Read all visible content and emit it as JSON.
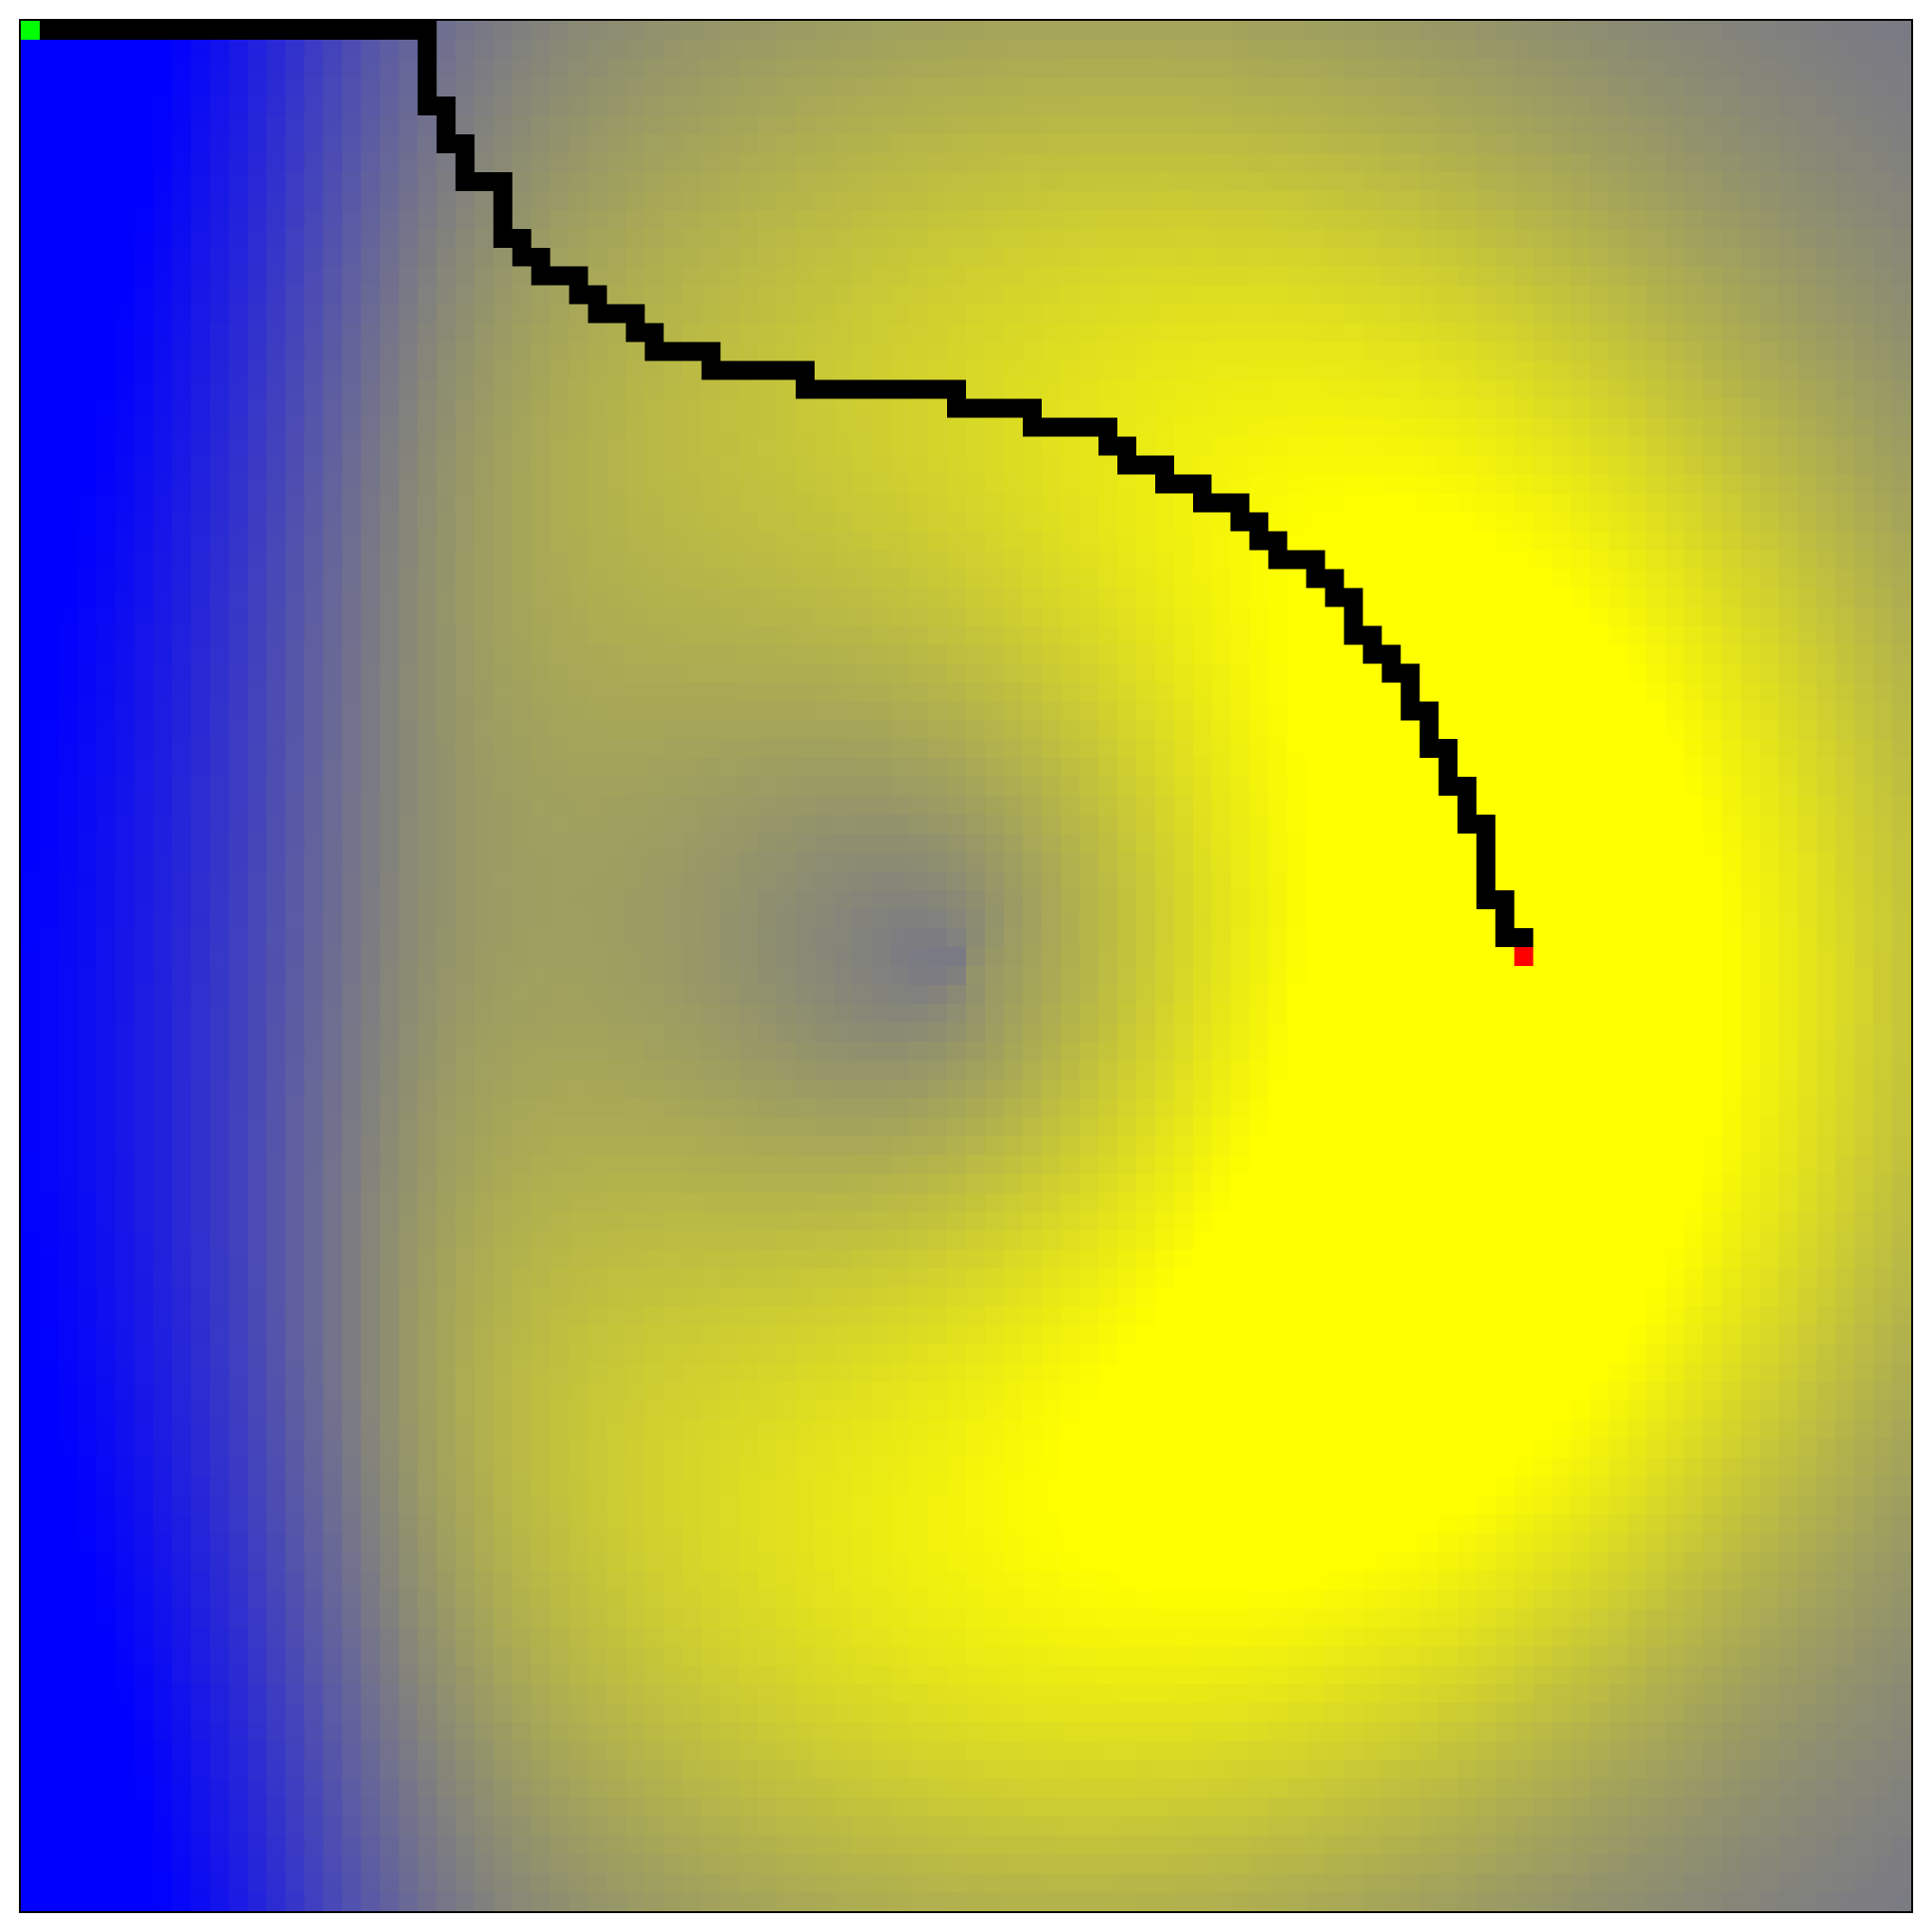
{
  "grid": {
    "cells": 100,
    "colors": {
      "low": "#0000ff",
      "mid": "#7f7f7f",
      "high": "#ffff00",
      "path": "#000000",
      "start": "#00ff00",
      "goal": "#ff0000"
    }
  },
  "start_cell": [
    0,
    0
  ],
  "goal_cell": [
    79,
    49
  ],
  "path": [
    [
      0,
      0
    ],
    [
      1,
      0
    ],
    [
      2,
      0
    ],
    [
      3,
      0
    ],
    [
      4,
      0
    ],
    [
      5,
      0
    ],
    [
      6,
      0
    ],
    [
      7,
      0
    ],
    [
      8,
      0
    ],
    [
      9,
      0
    ],
    [
      10,
      0
    ],
    [
      11,
      0
    ],
    [
      12,
      0
    ],
    [
      13,
      0
    ],
    [
      14,
      0
    ],
    [
      15,
      0
    ],
    [
      16,
      0
    ],
    [
      17,
      0
    ],
    [
      18,
      0
    ],
    [
      19,
      0
    ],
    [
      20,
      0
    ],
    [
      21,
      0
    ],
    [
      21,
      1
    ],
    [
      21,
      2
    ],
    [
      21,
      3
    ],
    [
      21,
      4
    ],
    [
      22,
      4
    ],
    [
      22,
      5
    ],
    [
      22,
      6
    ],
    [
      23,
      6
    ],
    [
      23,
      7
    ],
    [
      23,
      8
    ],
    [
      24,
      8
    ],
    [
      25,
      8
    ],
    [
      25,
      9
    ],
    [
      25,
      10
    ],
    [
      25,
      11
    ],
    [
      26,
      11
    ],
    [
      26,
      12
    ],
    [
      27,
      12
    ],
    [
      27,
      13
    ],
    [
      28,
      13
    ],
    [
      29,
      13
    ],
    [
      29,
      14
    ],
    [
      30,
      14
    ],
    [
      30,
      15
    ],
    [
      31,
      15
    ],
    [
      32,
      15
    ],
    [
      32,
      16
    ],
    [
      33,
      16
    ],
    [
      33,
      17
    ],
    [
      34,
      17
    ],
    [
      35,
      17
    ],
    [
      36,
      17
    ],
    [
      36,
      18
    ],
    [
      37,
      18
    ],
    [
      38,
      18
    ],
    [
      39,
      18
    ],
    [
      40,
      18
    ],
    [
      41,
      18
    ],
    [
      41,
      19
    ],
    [
      42,
      19
    ],
    [
      43,
      19
    ],
    [
      44,
      19
    ],
    [
      45,
      19
    ],
    [
      46,
      19
    ],
    [
      47,
      19
    ],
    [
      48,
      19
    ],
    [
      49,
      19
    ],
    [
      49,
      20
    ],
    [
      50,
      20
    ],
    [
      51,
      20
    ],
    [
      52,
      20
    ],
    [
      53,
      20
    ],
    [
      53,
      21
    ],
    [
      54,
      21
    ],
    [
      55,
      21
    ],
    [
      56,
      21
    ],
    [
      57,
      21
    ],
    [
      57,
      22
    ],
    [
      58,
      22
    ],
    [
      58,
      23
    ],
    [
      59,
      23
    ],
    [
      60,
      23
    ],
    [
      60,
      24
    ],
    [
      61,
      24
    ],
    [
      62,
      24
    ],
    [
      62,
      25
    ],
    [
      63,
      25
    ],
    [
      64,
      25
    ],
    [
      64,
      26
    ],
    [
      65,
      26
    ],
    [
      65,
      27
    ],
    [
      66,
      27
    ],
    [
      66,
      28
    ],
    [
      67,
      28
    ],
    [
      68,
      28
    ],
    [
      68,
      29
    ],
    [
      69,
      29
    ],
    [
      69,
      30
    ],
    [
      70,
      30
    ],
    [
      70,
      31
    ],
    [
      70,
      32
    ],
    [
      71,
      32
    ],
    [
      71,
      33
    ],
    [
      72,
      33
    ],
    [
      72,
      34
    ],
    [
      73,
      34
    ],
    [
      73,
      35
    ],
    [
      73,
      36
    ],
    [
      74,
      36
    ],
    [
      74,
      37
    ],
    [
      74,
      38
    ],
    [
      75,
      38
    ],
    [
      75,
      39
    ],
    [
      75,
      40
    ],
    [
      76,
      40
    ],
    [
      76,
      41
    ],
    [
      76,
      42
    ],
    [
      77,
      42
    ],
    [
      77,
      43
    ],
    [
      77,
      44
    ],
    [
      77,
      45
    ],
    [
      77,
      46
    ],
    [
      78,
      46
    ],
    [
      78,
      47
    ],
    [
      78,
      48
    ],
    [
      79,
      48
    ],
    [
      79,
      49
    ]
  ]
}
